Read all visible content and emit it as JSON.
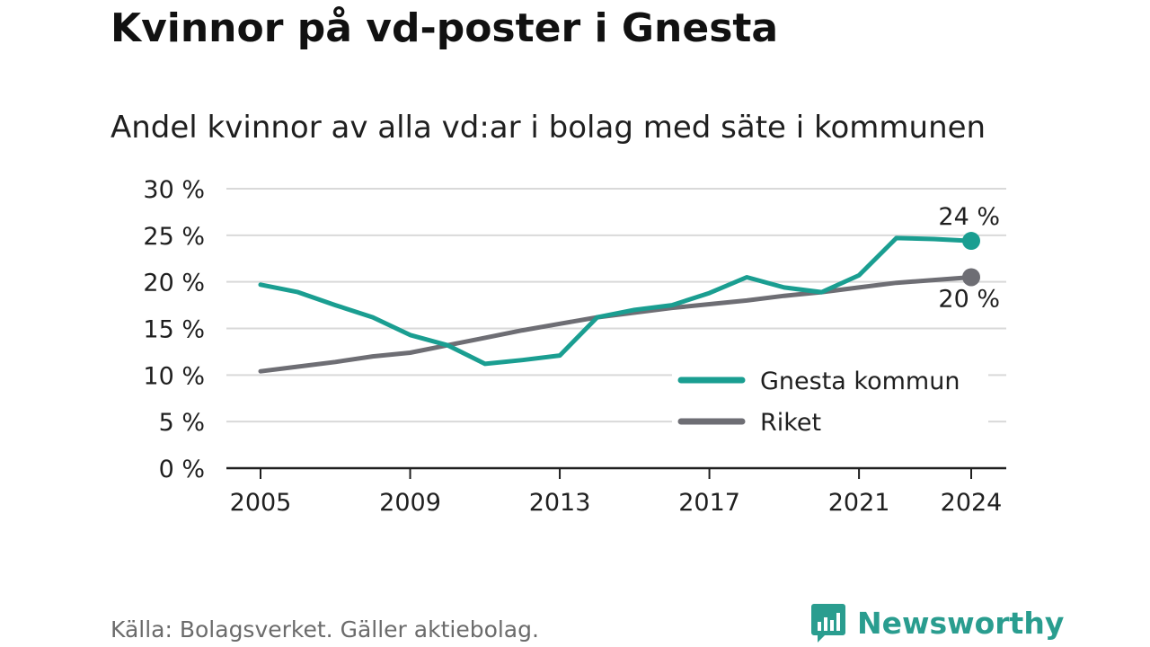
{
  "header": {
    "title": "Kvinnor på vd-poster i Gnesta",
    "subtitle": "Andel kvinnor av alla vd:ar i bolag med säte i kommunen"
  },
  "footer": {
    "source": "Källa: Bolagsverket. Gäller aktiebolag.",
    "brand": "Newsworthy",
    "brand_icon": "bar-chart-speech-bubble-icon"
  },
  "colors": {
    "gnesta": "#1a9e91",
    "riket": "#6e6e74",
    "grid": "#d9d9d9",
    "axis": "#1f1f1f",
    "brand": "#2a9d8f"
  },
  "chart_data": {
    "type": "line",
    "x": [
      2005,
      2006,
      2007,
      2008,
      2009,
      2010,
      2011,
      2012,
      2013,
      2014,
      2015,
      2016,
      2017,
      2018,
      2019,
      2020,
      2021,
      2022,
      2023,
      2024
    ],
    "series": [
      {
        "name": "Gnesta kommun",
        "values": [
          19.7,
          18.9,
          17.5,
          16.2,
          14.3,
          13.2,
          11.2,
          11.6,
          12.1,
          16.2,
          17.0,
          17.5,
          18.8,
          20.5,
          19.4,
          18.9,
          20.7,
          24.7,
          24.6,
          24.4
        ],
        "end_label": "24 %"
      },
      {
        "name": "Riket",
        "values": [
          10.4,
          10.9,
          11.4,
          12.0,
          12.4,
          13.2,
          14.0,
          14.8,
          15.5,
          16.2,
          16.7,
          17.2,
          17.6,
          18.0,
          18.5,
          18.9,
          19.4,
          19.9,
          20.2,
          20.5
        ],
        "end_label": "20 %"
      }
    ],
    "ylim": [
      0,
      30
    ],
    "y_ticks": [
      0,
      5,
      10,
      15,
      20,
      25,
      30
    ],
    "y_tick_labels": [
      "0 %",
      "5 %",
      "10 %",
      "15 %",
      "20 %",
      "25 %",
      "30 %"
    ],
    "x_ticks": [
      2005,
      2009,
      2013,
      2017,
      2021,
      2024
    ],
    "x_tick_labels": [
      "2005",
      "2009",
      "2013",
      "2017",
      "2021",
      "2024"
    ],
    "xlabel": "",
    "ylabel": "",
    "grid": true,
    "legend_position": "bottom-right"
  }
}
